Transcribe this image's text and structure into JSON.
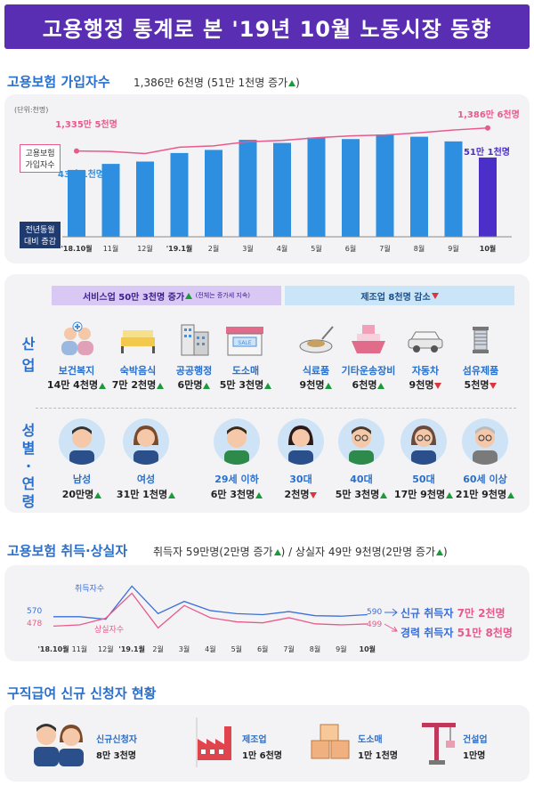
{
  "title": "고용행정 통계로 본 '19년 10월 노동시장 동향",
  "insured": {
    "heading": "고용보험 가입자수",
    "summary": "1,386만 6천명 (51만 1천명 증가",
    "unit": "(단위:천명)",
    "line_label": "고용보험 가입자수",
    "bar_label": "전년동월 대비 증감",
    "start_total": "1,335만 5천명",
    "end_total": "1,386만 6천명",
    "start_bar": "43만 1천명",
    "end_bar": "51만 1천명"
  },
  "chart_data": [
    {
      "type": "bar",
      "title": "고용보험 가입자수",
      "categories": [
        "'18.10월",
        "11월",
        "12월",
        "'19.1월",
        "2월",
        "3월",
        "4월",
        "5월",
        "6월",
        "7월",
        "8월",
        "9월",
        "10월"
      ],
      "series": [
        {
          "name": "전년동월 대비 증감",
          "values": [
            431,
            470,
            485,
            540,
            560,
            625,
            605,
            640,
            630,
            660,
            645,
            615,
            511
          ]
        },
        {
          "name": "고용보험 가입자수",
          "values": [
            13355,
            13345,
            13300,
            13440,
            13470,
            13560,
            13590,
            13650,
            13690,
            13710,
            13760,
            13820,
            13866
          ]
        }
      ],
      "bar_colors": [
        "#2e8fe0",
        "#2e8fe0",
        "#2e8fe0",
        "#2e8fe0",
        "#2e8fe0",
        "#2e8fe0",
        "#2e8fe0",
        "#2e8fe0",
        "#2e8fe0",
        "#2e8fe0",
        "#2e8fe0",
        "#2e8fe0",
        "#4b2fc8"
      ],
      "line_color": "#e85a8a"
    },
    {
      "type": "line",
      "title": "고용보험 취득·상실자",
      "categories": [
        "'18.10월",
        "11월",
        "12월",
        "'19.1월",
        "2월",
        "3월",
        "4월",
        "5월",
        "6월",
        "7월",
        "8월",
        "9월",
        "10월"
      ],
      "series": [
        {
          "name": "취득자수",
          "values": [
            570,
            570,
            545,
            870,
            600,
            720,
            630,
            600,
            590,
            620,
            580,
            575,
            590
          ],
          "color": "#3a6fd8"
        },
        {
          "name": "상실자수",
          "values": [
            478,
            490,
            555,
            800,
            460,
            680,
            560,
            520,
            510,
            560,
            500,
            490,
            499
          ],
          "color": "#e85a8a"
        }
      ],
      "start_labels": [
        "570",
        "478"
      ],
      "end_labels": [
        "590",
        "499"
      ]
    }
  ],
  "industry": {
    "tag_left": "서비스업 50만 3천명 증가",
    "tag_left_note": "(전체는 증가세 지속)",
    "tag_right": "제조업 8천명 감소",
    "row_label": "산업",
    "items": [
      {
        "label": "보건복지",
        "value": "14만 4천명",
        "dir": "up"
      },
      {
        "label": "숙박음식",
        "value": "7만 2천명",
        "dir": "up"
      },
      {
        "label": "공공행정",
        "value": "6만명",
        "dir": "up"
      },
      {
        "label": "도소매",
        "value": "5만 3천명",
        "dir": "up"
      },
      {
        "label": "식료품",
        "value": "9천명",
        "dir": "up"
      },
      {
        "label": "기타운송장비",
        "value": "6천명",
        "dir": "up"
      },
      {
        "label": "자동차",
        "value": "9천명",
        "dir": "down"
      },
      {
        "label": "섬유제품",
        "value": "5천명",
        "dir": "down"
      }
    ]
  },
  "demo": {
    "row_label": "성별·연령",
    "items": [
      {
        "label": "남성",
        "value": "20만명",
        "dir": "up"
      },
      {
        "label": "여성",
        "value": "31만 1천명",
        "dir": "up"
      },
      {
        "label": "29세 이하",
        "value": "6만 3천명",
        "dir": "up"
      },
      {
        "label": "30대",
        "value": "2천명",
        "dir": "down"
      },
      {
        "label": "40대",
        "value": "5만 3천명",
        "dir": "up"
      },
      {
        "label": "50대",
        "value": "17만 9천명",
        "dir": "up"
      },
      {
        "label": "60세 이상",
        "value": "21만 9천명",
        "dir": "up"
      }
    ]
  },
  "flows": {
    "heading": "고용보험 취득·상실자",
    "summary_a": "취득자 59만명(2만명 증가",
    "summary_b": "/ 상실자 49만 9천명(2만명 증가",
    "series_a": "취득자수",
    "series_b": "상실자수",
    "new_label": "신규 취득자",
    "new_value": "7만 2천명",
    "exp_label": "경력 취득자",
    "exp_value": "51만 8천명"
  },
  "jobseek": {
    "heading": "구직급여 신규 신청자 현황",
    "items": [
      {
        "label": "신규신청자",
        "value": "8만 3천명"
      },
      {
        "label": "제조업",
        "value": "1만 6천명"
      },
      {
        "label": "도소매",
        "value": "1만 1천명"
      },
      {
        "label": "건설업",
        "value": "1만명"
      }
    ]
  },
  "colors": {
    "purple": "#5a2eb2",
    "blue": "#2a6fc9",
    "pink": "#e85a8a",
    "green": "#1a9a3a",
    "red": "#d9363e"
  }
}
